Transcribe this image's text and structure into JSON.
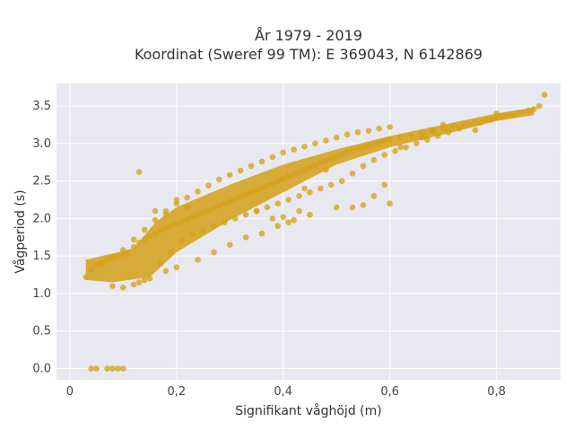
{
  "chart_data": {
    "type": "scatter",
    "title_line1": "År 1979 - 2019",
    "title_line2": "Koordinat (Sweref 99 TM): E 369043, N 6142869",
    "xlabel": "Signifikant våghöjd (m)",
    "ylabel": "Vågperiod (s)",
    "xlim": [
      -0.025,
      0.92
    ],
    "ylim": [
      -0.15,
      3.8
    ],
    "x_ticks": [
      0,
      0.2,
      0.4,
      0.6,
      0.8
    ],
    "x_tick_labels": [
      "0",
      "0,2",
      "0,4",
      "0,6",
      "0,8"
    ],
    "y_ticks": [
      0,
      0.5,
      1,
      1.5,
      2,
      2.5,
      3,
      3.5
    ],
    "y_tick_labels": [
      "0.0",
      "0.5",
      "1.0",
      "1.5",
      "2.0",
      "2.5",
      "3.0",
      "3.5"
    ],
    "grid": true,
    "point_color": "#d4a017",
    "background_color": "#e8e8f0",
    "series": [
      {
        "x": [
          0.03,
          0.04,
          0.05,
          0.06,
          0.07,
          0.08,
          0.09,
          0.1,
          0.11,
          0.12,
          0.13,
          0.14,
          0.15,
          0.16,
          0.17,
          0.18,
          0.19,
          0.2,
          0.21,
          0.22,
          0.23,
          0.24,
          0.25,
          0.26,
          0.27,
          0.28,
          0.29,
          0.3,
          0.31,
          0.32,
          0.33,
          0.34,
          0.35,
          0.36,
          0.37,
          0.38,
          0.39,
          0.4,
          0.41,
          0.42,
          0.43,
          0.44,
          0.45,
          0.46,
          0.47,
          0.48,
          0.49,
          0.5,
          0.51,
          0.52,
          0.53,
          0.54,
          0.55,
          0.56,
          0.57,
          0.58,
          0.59,
          0.6,
          0.62,
          0.64,
          0.66,
          0.68,
          0.7,
          0.72,
          0.74,
          0.76,
          0.78,
          0.8,
          0.82,
          0.84,
          0.86,
          0.88,
          0.89,
          0.04,
          0.05,
          0.07,
          0.08,
          0.09,
          0.1,
          0.13,
          0.15,
          0.17,
          0.19,
          0.21,
          0.23,
          0.25,
          0.27,
          0.29,
          0.31,
          0.33,
          0.35,
          0.37,
          0.39,
          0.41,
          0.43,
          0.45,
          0.47,
          0.49,
          0.51,
          0.53,
          0.55,
          0.57,
          0.59,
          0.61,
          0.63,
          0.65,
          0.67,
          0.69,
          0.71,
          0.73,
          0.75,
          0.77,
          0.79,
          0.81,
          0.83,
          0.85,
          0.87,
          0.06,
          0.08,
          0.1,
          0.12,
          0.14,
          0.16,
          0.18,
          0.2,
          0.22,
          0.24,
          0.26,
          0.28,
          0.3,
          0.32,
          0.34,
          0.36,
          0.38,
          0.4,
          0.42,
          0.44,
          0.46,
          0.48,
          0.5,
          0.52,
          0.54,
          0.56,
          0.58,
          0.6,
          0.13,
          0.16,
          0.18,
          0.2,
          0.22,
          0.35,
          0.38,
          0.4,
          0.42,
          0.43,
          0.44,
          0.48,
          0.53,
          0.55,
          0.57,
          0.59,
          0.6,
          0.62,
          0.66,
          0.68,
          0.7,
          0.76,
          0.8,
          0.08,
          0.1,
          0.12,
          0.14,
          0.18,
          0.2,
          0.24,
          0.27,
          0.3,
          0.33,
          0.36,
          0.39,
          0.41,
          0.45,
          0.5
        ],
        "y": [
          1.22,
          1.32,
          1.38,
          1.42,
          1.45,
          1.48,
          1.5,
          1.52,
          1.55,
          1.62,
          1.68,
          1.72,
          1.76,
          1.8,
          1.84,
          1.87,
          1.9,
          1.93,
          1.96,
          1.99,
          2.02,
          2.05,
          2.08,
          2.11,
          2.14,
          2.17,
          2.2,
          2.23,
          2.26,
          2.29,
          2.32,
          2.35,
          2.38,
          2.41,
          2.44,
          2.47,
          2.5,
          2.53,
          2.56,
          2.59,
          2.62,
          2.65,
          2.68,
          2.71,
          2.74,
          2.77,
          2.8,
          2.83,
          2.86,
          2.89,
          2.91,
          2.93,
          2.95,
          2.97,
          2.99,
          3.01,
          3.03,
          3.05,
          3.08,
          3.11,
          3.14,
          3.17,
          3.2,
          3.23,
          3.26,
          3.29,
          3.32,
          3.35,
          3.38,
          3.41,
          3.44,
          3.5,
          3.65,
          0.0,
          0.0,
          0.0,
          0.0,
          0.0,
          0.0,
          1.15,
          1.2,
          1.4,
          1.55,
          1.7,
          1.8,
          1.85,
          1.9,
          1.95,
          2.0,
          2.05,
          2.1,
          2.15,
          2.2,
          2.25,
          2.3,
          2.35,
          2.4,
          2.45,
          2.5,
          2.6,
          2.7,
          2.78,
          2.85,
          2.9,
          2.95,
          3.0,
          3.05,
          3.1,
          3.15,
          3.2,
          3.25,
          3.28,
          3.32,
          3.36,
          3.38,
          3.42,
          3.46,
          1.4,
          1.48,
          1.58,
          1.72,
          1.85,
          1.98,
          2.1,
          2.2,
          2.28,
          2.36,
          2.44,
          2.52,
          2.58,
          2.64,
          2.7,
          2.76,
          2.82,
          2.88,
          2.92,
          2.96,
          3.0,
          3.04,
          3.08,
          3.12,
          3.15,
          3.17,
          3.2,
          3.22,
          2.62,
          2.1,
          2.05,
          2.25,
          2.15,
          2.1,
          2.0,
          2.02,
          1.98,
          2.1,
          2.4,
          2.65,
          2.15,
          2.18,
          2.3,
          2.45,
          2.2,
          2.95,
          3.08,
          3.18,
          3.25,
          3.18,
          3.4,
          1.1,
          1.08,
          1.12,
          1.18,
          1.3,
          1.35,
          1.45,
          1.55,
          1.65,
          1.75,
          1.8,
          1.9,
          1.95,
          2.05,
          2.15
        ]
      }
    ]
  }
}
